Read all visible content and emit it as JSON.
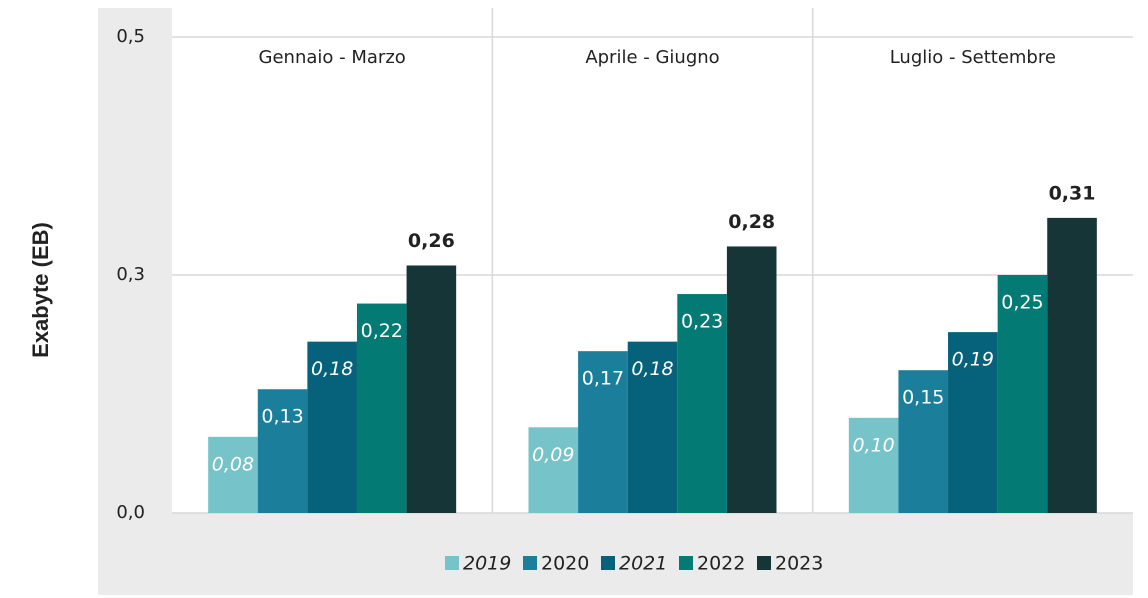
{
  "chart_data": {
    "type": "bar",
    "y_label": "Exabyte (EB)",
    "categories": [
      "Gennaio - Marzo",
      "Aprile - Giugno",
      "Luglio - Settembre"
    ],
    "series": [
      {
        "name": "2019",
        "color": "#76c3c9",
        "italic": true,
        "values": [
          0.08,
          0.09,
          0.1
        ],
        "value_labels": [
          "0,08",
          "0,09",
          "0,10"
        ]
      },
      {
        "name": "2020",
        "color": "#1b7f9b",
        "values": [
          0.13,
          0.17,
          0.15
        ],
        "value_labels": [
          "0,13",
          "0,17",
          "0,15"
        ]
      },
      {
        "name": "2021",
        "color": "#06627a",
        "italic": true,
        "values": [
          0.18,
          0.18,
          0.19
        ],
        "value_labels": [
          "0,18",
          "0,18",
          "0,19"
        ]
      },
      {
        "name": "2022",
        "color": "#047a74",
        "values": [
          0.22,
          0.23,
          0.25
        ],
        "value_labels": [
          "0,22",
          "0,23",
          "0,25"
        ]
      },
      {
        "name": "2023",
        "color": "#163536",
        "values": [
          0.26,
          0.28,
          0.31
        ],
        "value_labels": [
          "0,26",
          "0,28",
          "0,31"
        ]
      }
    ],
    "ylim": [
      0,
      0.5
    ],
    "yticks": [
      {
        "value": 0,
        "label": "0,0"
      },
      {
        "value": 0.25,
        "label": "0,3"
      },
      {
        "value": 0.5,
        "label": "0,5"
      }
    ],
    "grid": true
  }
}
